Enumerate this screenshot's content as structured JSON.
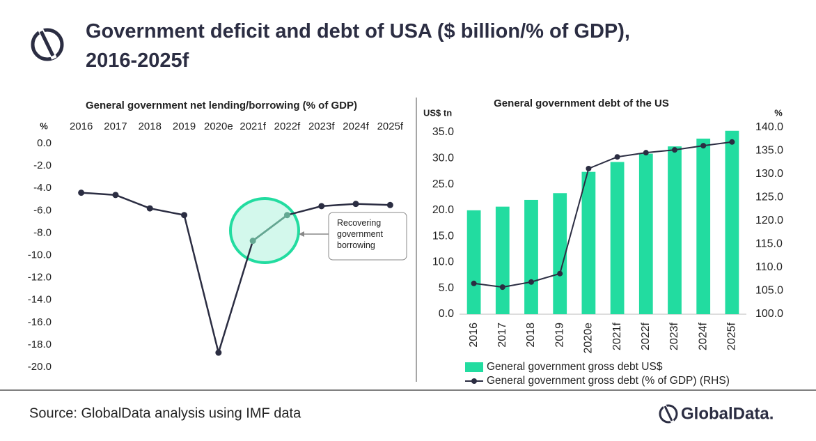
{
  "header": {
    "title": "Government deficit and debt of USA ($ billion/% of GDP), 2016-2025f"
  },
  "footer": {
    "source": "Source: GlobalData analysis using IMF data",
    "brand": "GlobalData."
  },
  "chart_data": [
    {
      "type": "line",
      "title": "General government net lending/borrowing (% of GDP)",
      "y_label": "%",
      "categories": [
        "2016",
        "2017",
        "2018",
        "2019",
        "2020e",
        "2021f",
        "2022f",
        "2023f",
        "2024f",
        "2025f"
      ],
      "values": [
        -4.4,
        -4.6,
        -5.8,
        -6.4,
        -18.7,
        -8.7,
        -6.4,
        -5.6,
        -5.4,
        -5.5
      ],
      "color": "#2b2d42",
      "annotation": {
        "text": "Recovering government borrowing",
        "color": "#63a892"
      },
      "ylim": [
        -20,
        0
      ],
      "yticks": [
        {
          "value": 0,
          "label": "0.0"
        },
        {
          "value": -2,
          "label": "-2.0"
        },
        {
          "value": -4,
          "label": "-4.0"
        },
        {
          "value": -6,
          "label": "-6.0"
        },
        {
          "value": -8,
          "label": "-8.0"
        },
        {
          "value": -10,
          "label": "-10.0"
        },
        {
          "value": -12,
          "label": "-12.0"
        },
        {
          "value": -14,
          "label": "-14.0"
        },
        {
          "value": -16,
          "label": "-16.0"
        },
        {
          "value": -18,
          "label": "-18.0"
        },
        {
          "value": -20,
          "label": "-20.0"
        }
      ]
    },
    {
      "type": "bar",
      "title": "General government debt of the US",
      "y_label": "US$ tn",
      "y2_label": "%",
      "categories": [
        "2016",
        "2017",
        "2018",
        "2019",
        "2020e",
        "2021f",
        "2022f",
        "2023f",
        "2024f",
        "2025f"
      ],
      "series": [
        {
          "name": "General government gross debt US$",
          "type": "bar",
          "color": "#22dca0",
          "values": [
            20.0,
            20.7,
            22.0,
            23.3,
            27.4,
            29.3,
            30.9,
            32.3,
            33.8,
            35.3
          ]
        },
        {
          "name": "General government gross debt (% of GDP) (RHS)",
          "type": "line",
          "axis": "y2",
          "color": "#2b2d42",
          "values": [
            106.6,
            105.8,
            106.9,
            108.7,
            131.2,
            133.7,
            134.6,
            135.2,
            136.1,
            136.9
          ]
        }
      ],
      "ylim": [
        0,
        35
      ],
      "yticks": [
        {
          "value": 0,
          "label": "0.0"
        },
        {
          "value": 5,
          "label": "5.0"
        },
        {
          "value": 10,
          "label": "10.0"
        },
        {
          "value": 15,
          "label": "15.0"
        },
        {
          "value": 20,
          "label": "20.0"
        },
        {
          "value": 25,
          "label": "25.0"
        },
        {
          "value": 30,
          "label": "30.0"
        },
        {
          "value": 35,
          "label": "35.0"
        }
      ],
      "y2lim": [
        100,
        140
      ],
      "y2ticks": [
        {
          "value": 100,
          "label": "100.0"
        },
        {
          "value": 105,
          "label": "105.0"
        },
        {
          "value": 110,
          "label": "110.0"
        },
        {
          "value": 115,
          "label": "115.0"
        },
        {
          "value": 120,
          "label": "120.0"
        },
        {
          "value": 125,
          "label": "125.0"
        },
        {
          "value": 130,
          "label": "130.0"
        },
        {
          "value": 135,
          "label": "135.0"
        },
        {
          "value": 140,
          "label": "140.0"
        }
      ],
      "legend": "bottom"
    }
  ]
}
